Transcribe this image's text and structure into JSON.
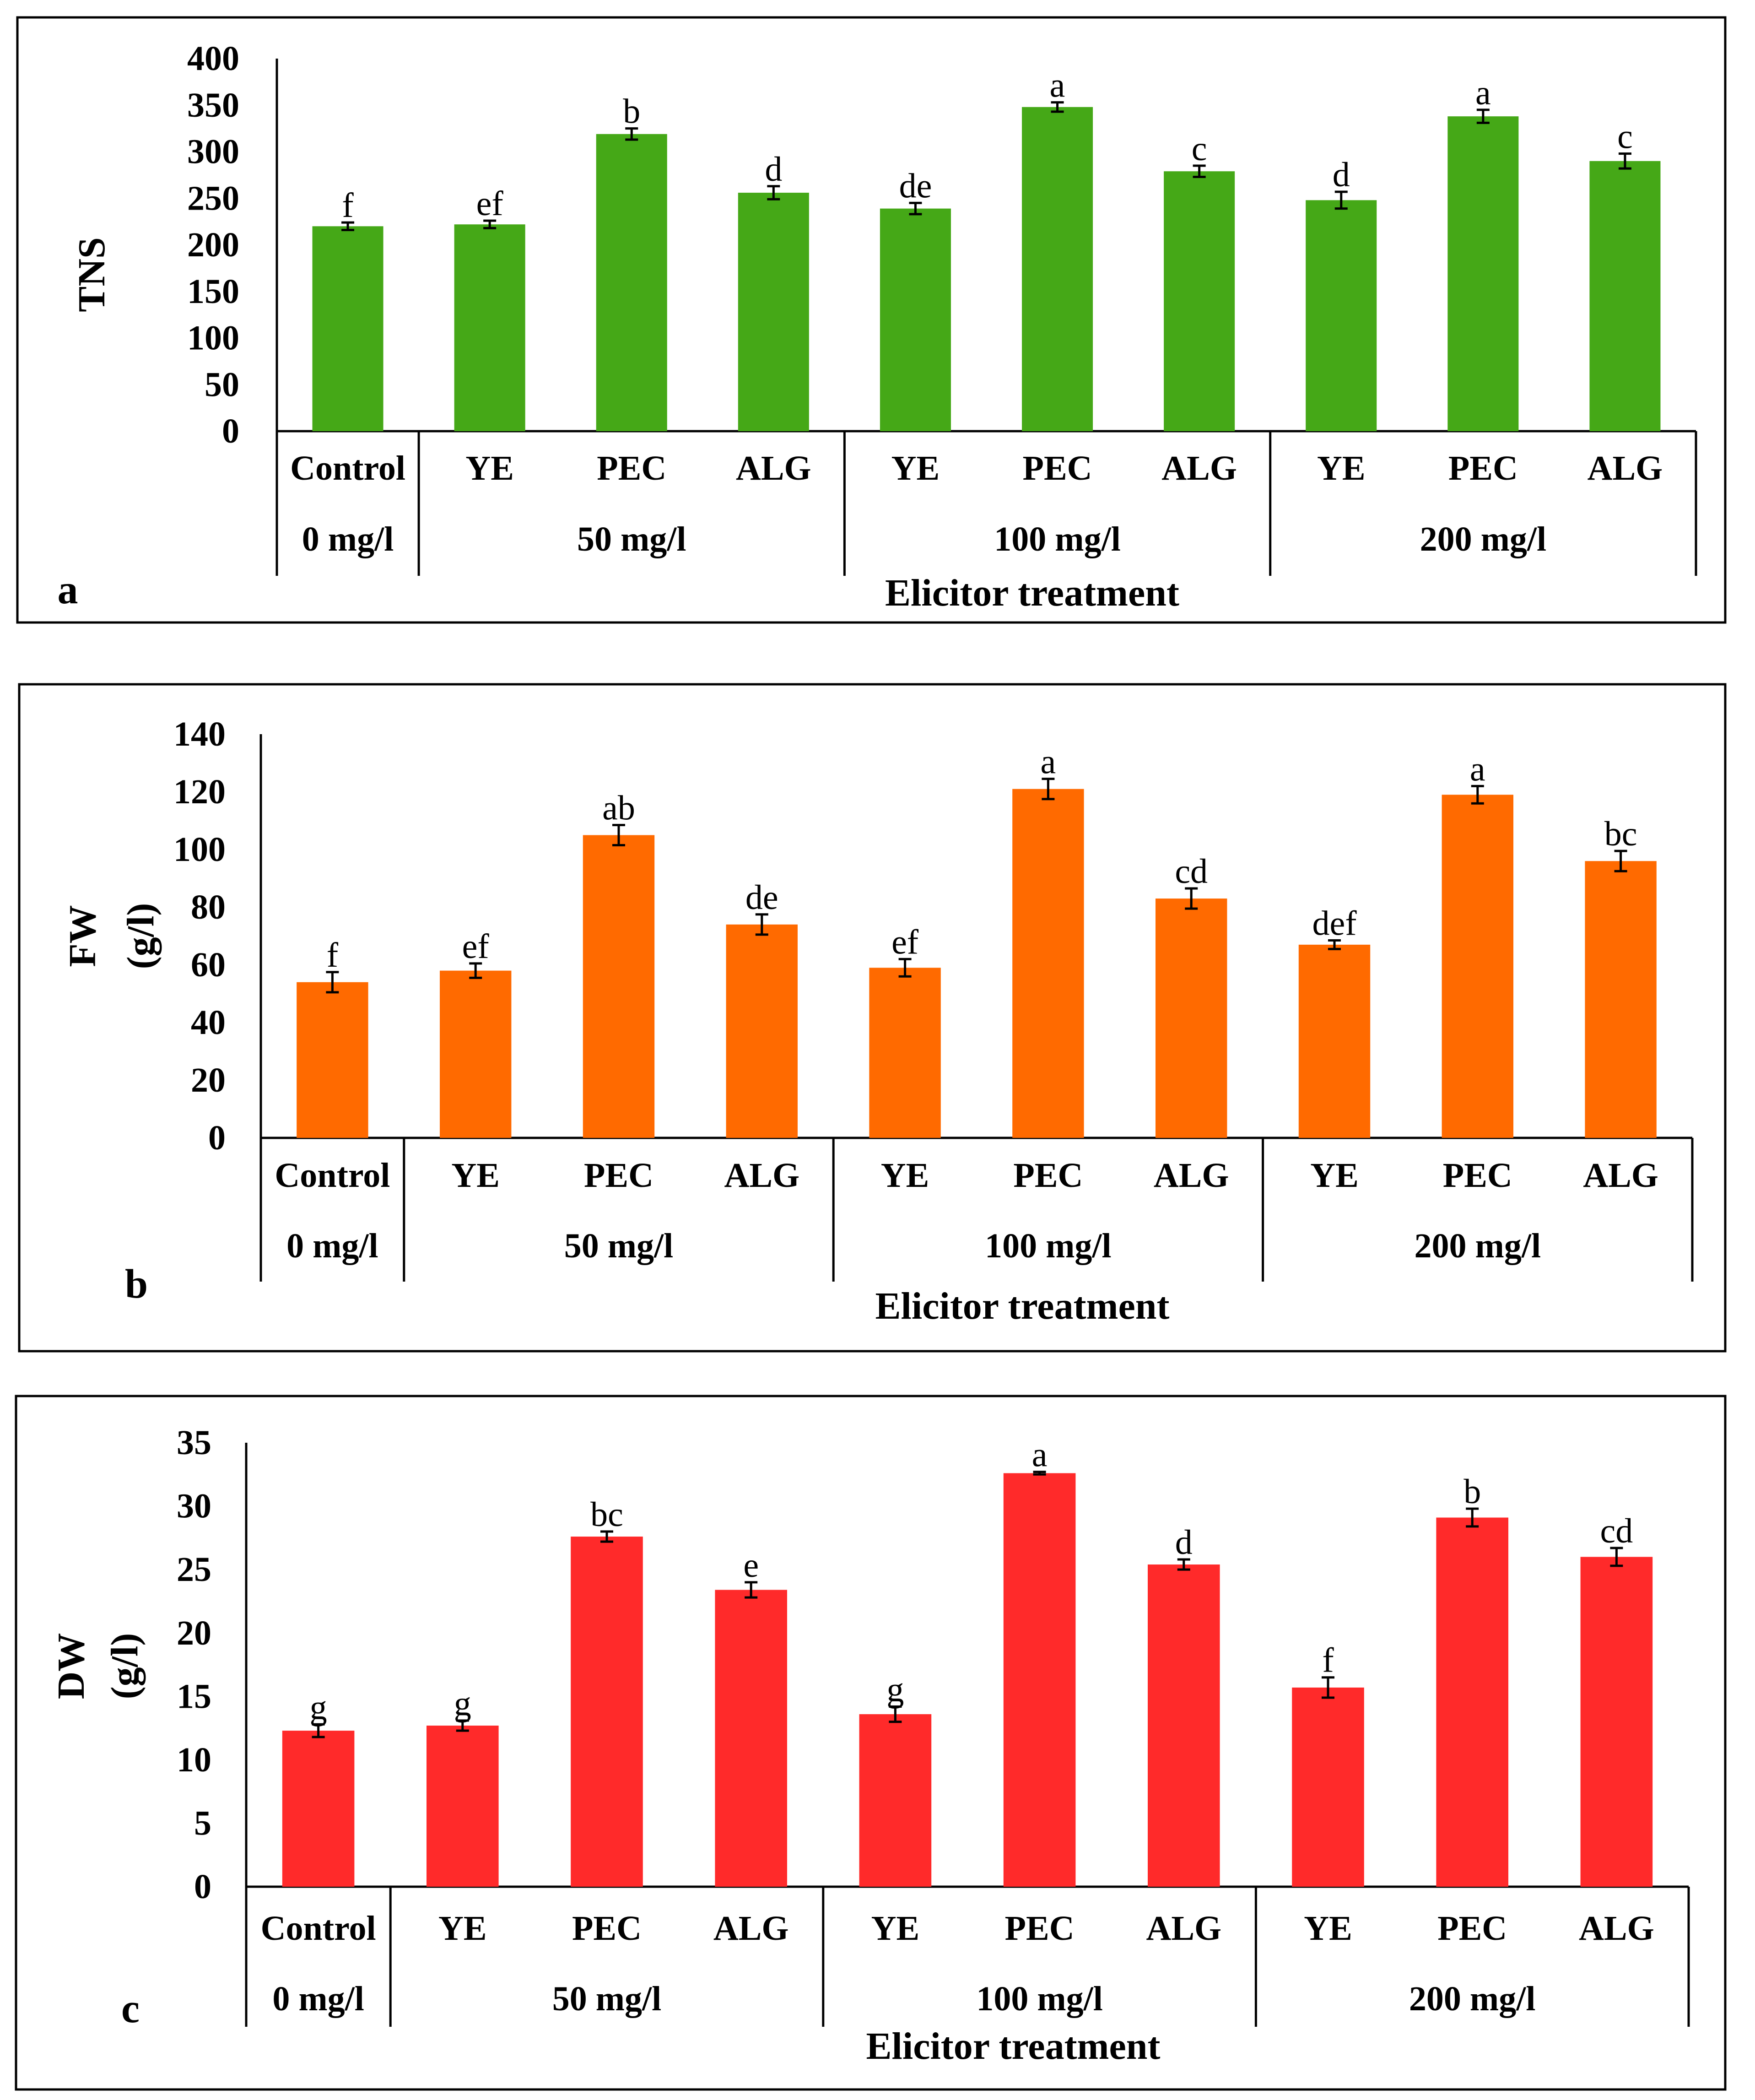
{
  "chart_data": [
    {
      "type": "bar",
      "panel_label": "a",
      "ylabel": "TNS",
      "ylabel_unit": "",
      "xlabel": "Elicitor treatment",
      "ylim": [
        0,
        400
      ],
      "yticks": [
        0,
        50,
        100,
        150,
        200,
        250,
        300,
        350,
        400
      ],
      "color": "#45a817",
      "categories": [
        "Control",
        "YE",
        "PEC",
        "ALG",
        "YE",
        "PEC",
        "ALG",
        "YE",
        "PEC",
        "ALG"
      ],
      "groups": [
        {
          "label": "0 mg/l",
          "start": 0,
          "end": 0
        },
        {
          "label": "50 mg/l",
          "start": 1,
          "end": 3
        },
        {
          "label": "100 mg/l",
          "start": 4,
          "end": 6
        },
        {
          "label": "200 mg/l",
          "start": 7,
          "end": 9
        }
      ],
      "values": [
        220,
        222,
        319,
        256,
        239,
        348,
        279,
        248,
        338,
        290
      ],
      "errors": [
        4,
        4,
        6,
        7,
        6,
        5,
        6,
        9,
        7,
        8
      ],
      "letters": [
        "f",
        "ef",
        "b",
        "d",
        "de",
        "a",
        "c",
        "d",
        "a",
        "c"
      ]
    },
    {
      "type": "bar",
      "panel_label": "b",
      "ylabel": "FW",
      "ylabel_unit": "(g/l)",
      "xlabel": "Elicitor treatment",
      "ylim": [
        0,
        140
      ],
      "yticks": [
        0,
        20,
        40,
        60,
        80,
        100,
        120,
        140
      ],
      "color": "#ff6a00",
      "categories": [
        "Control",
        "YE",
        "PEC",
        "ALG",
        "YE",
        "PEC",
        "ALG",
        "YE",
        "PEC",
        "ALG"
      ],
      "groups": [
        {
          "label": "0 mg/l",
          "start": 0,
          "end": 0
        },
        {
          "label": "50 mg/l",
          "start": 1,
          "end": 3
        },
        {
          "label": "100 mg/l",
          "start": 4,
          "end": 6
        },
        {
          "label": "200 mg/l",
          "start": 7,
          "end": 9
        }
      ],
      "values": [
        54,
        58,
        105,
        74,
        59,
        121,
        83,
        67,
        119,
        96
      ],
      "errors": [
        3.5,
        2.5,
        3.5,
        3.5,
        3,
        3.5,
        3.5,
        1.5,
        3,
        3.5
      ],
      "letters": [
        "f",
        "ef",
        "ab",
        "de",
        "ef",
        "a",
        "cd",
        "def",
        "a",
        "bc"
      ]
    },
    {
      "type": "bar",
      "panel_label": "c",
      "ylabel": "DW",
      "ylabel_unit": "(g/l)",
      "xlabel": "Elicitor treatment",
      "ylim": [
        0,
        35
      ],
      "yticks": [
        0,
        5,
        10,
        15,
        20,
        25,
        30,
        35
      ],
      "color": "#ff2a2a",
      "categories": [
        "Control",
        "YE",
        "PEC",
        "ALG",
        "YE",
        "PEC",
        "ALG",
        "YE",
        "PEC",
        "ALG"
      ],
      "groups": [
        {
          "label": "0 mg/l",
          "start": 0,
          "end": 0
        },
        {
          "label": "50 mg/l",
          "start": 1,
          "end": 3
        },
        {
          "label": "100 mg/l",
          "start": 4,
          "end": 6
        },
        {
          "label": "200 mg/l",
          "start": 7,
          "end": 9
        }
      ],
      "values": [
        12.3,
        12.7,
        27.6,
        23.4,
        13.6,
        32.6,
        25.4,
        15.7,
        29.1,
        26.0
      ],
      "errors": [
        0.5,
        0.4,
        0.4,
        0.6,
        0.6,
        0.1,
        0.4,
        0.8,
        0.7,
        0.7
      ],
      "letters": [
        "g",
        "g",
        "bc",
        "e",
        "g",
        "a",
        "d",
        "f",
        "b",
        "cd"
      ]
    }
  ]
}
